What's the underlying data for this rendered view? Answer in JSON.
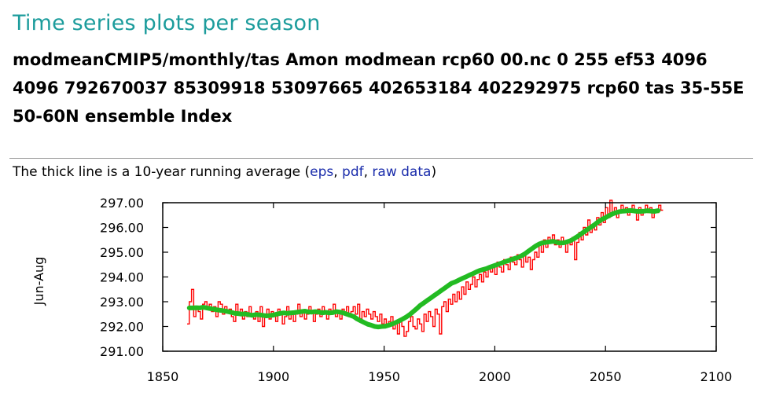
{
  "page": {
    "title": "Time series plots per season",
    "subtitle": "modmeanCMIP5/monthly/tas Amon modmean rcp60 00.nc 0 255 ef53 4096 4096 792670037 85309918 53097665 402653184 402292975 rcp60 tas 35-55E 50-60N ensemble Index"
  },
  "caption": {
    "text_before": "The thick line is a 10-year running average (",
    "link_eps": "eps",
    "sep1": ", ",
    "link_pdf": "pdf",
    "sep2": ", ",
    "link_raw": "raw data",
    "text_after": ")"
  },
  "colors": {
    "title": "#1c9c9c",
    "link": "#1a2cab",
    "raw_series": "#ff0000",
    "running_mean": "#22bb22"
  },
  "chart_data": {
    "type": "line",
    "title": "",
    "xlabel": "",
    "ylabel": "Jun-Aug",
    "xlim": [
      1850,
      2100
    ],
    "ylim": [
      291.0,
      297.0
    ],
    "x_ticks": [
      1850,
      1900,
      1950,
      2000,
      2050,
      2100
    ],
    "y_ticks": [
      291.0,
      292.0,
      293.0,
      294.0,
      295.0,
      296.0,
      297.0
    ],
    "y_tick_labels": [
      "291.00",
      "292.00",
      "293.00",
      "294.00",
      "295.00",
      "296.00",
      "297.00"
    ],
    "x_start": 1861,
    "grid": false,
    "legend": "none",
    "series": [
      {
        "style": "stepped",
        "values": [
          292.1,
          293.0,
          293.5,
          292.4,
          292.8,
          292.6,
          292.3,
          292.9,
          293.0,
          292.7,
          292.9,
          292.6,
          292.8,
          292.4,
          293.0,
          292.9,
          292.5,
          292.8,
          292.6,
          292.7,
          292.4,
          292.2,
          292.9,
          292.5,
          292.7,
          292.3,
          292.6,
          292.4,
          292.8,
          292.5,
          292.3,
          292.6,
          292.2,
          292.8,
          292.0,
          292.5,
          292.7,
          292.3,
          292.6,
          292.4,
          292.2,
          292.7,
          292.5,
          292.1,
          292.4,
          292.8,
          292.3,
          292.6,
          292.2,
          292.5,
          292.9,
          292.4,
          292.6,
          292.3,
          292.5,
          292.8,
          292.6,
          292.2,
          292.5,
          292.7,
          292.4,
          292.8,
          292.5,
          292.3,
          292.7,
          292.6,
          292.9,
          292.4,
          292.6,
          292.3,
          292.7,
          292.5,
          292.8,
          292.4,
          292.6,
          292.8,
          292.5,
          292.9,
          292.3,
          292.6,
          292.4,
          292.7,
          292.5,
          292.3,
          292.6,
          292.4,
          292.2,
          292.5,
          292.1,
          292.3,
          292.0,
          292.2,
          292.4,
          291.9,
          292.1,
          291.7,
          292.2,
          292.0,
          291.6,
          291.8,
          292.2,
          292.4,
          292.0,
          291.9,
          292.3,
          292.1,
          291.8,
          292.5,
          292.2,
          292.6,
          292.4,
          292.0,
          292.7,
          292.5,
          291.7,
          292.8,
          293.0,
          292.6,
          293.1,
          292.9,
          293.3,
          293.0,
          293.4,
          293.1,
          293.6,
          293.3,
          293.8,
          293.5,
          293.7,
          294.0,
          293.6,
          293.9,
          294.1,
          293.8,
          294.2,
          294.0,
          294.3,
          294.2,
          294.5,
          294.1,
          294.6,
          294.4,
          294.2,
          294.7,
          294.5,
          294.3,
          294.8,
          294.6,
          294.5,
          294.9,
          294.7,
          294.4,
          294.9,
          294.6,
          294.8,
          294.3,
          294.7,
          295.0,
          294.8,
          295.3,
          295.0,
          295.5,
          295.2,
          295.6,
          295.4,
          295.7,
          295.3,
          295.5,
          295.2,
          295.6,
          295.4,
          295.0,
          295.5,
          295.3,
          295.6,
          294.7,
          295.4,
          295.8,
          295.5,
          296.0,
          295.7,
          296.3,
          295.8,
          296.1,
          295.9,
          296.4,
          296.1,
          296.6,
          296.2,
          296.8,
          296.4,
          297.1,
          296.5,
          296.8,
          296.4,
          296.7,
          296.9,
          296.6,
          296.8,
          296.5,
          296.7,
          296.9,
          296.6,
          296.3,
          296.8,
          296.5,
          296.7,
          296.9,
          296.6,
          296.8,
          296.4,
          296.7,
          296.6,
          296.9,
          296.7
        ]
      },
      {
        "style": "thick",
        "values": [
          292.75,
          292.75,
          292.76,
          292.75,
          292.78,
          292.75,
          292.72,
          292.7,
          292.67,
          292.65,
          292.63,
          292.6,
          292.57,
          292.53,
          292.52,
          292.5,
          292.51,
          292.48,
          292.45,
          292.48,
          292.47,
          292.45,
          292.43,
          292.44,
          292.46,
          292.5,
          292.53,
          292.55,
          292.53,
          292.55,
          292.56,
          292.58,
          292.6,
          292.62,
          292.59,
          292.58,
          292.6,
          292.58,
          292.55,
          292.57,
          292.55,
          292.56,
          292.6,
          292.58,
          292.55,
          292.5,
          292.45,
          292.4,
          292.3,
          292.23,
          292.16,
          292.09,
          292.05,
          292.0,
          291.98,
          292.0,
          292.01,
          292.05,
          292.1,
          292.16,
          292.23,
          292.3,
          292.38,
          292.48,
          292.6,
          292.72,
          292.85,
          292.95,
          293.05,
          293.15,
          293.25,
          293.35,
          293.45,
          293.55,
          293.65,
          293.75,
          293.8,
          293.87,
          293.94,
          294.0,
          294.07,
          294.13,
          294.2,
          294.26,
          294.3,
          294.34,
          294.4,
          294.45,
          294.5,
          294.55,
          294.6,
          294.65,
          294.7,
          294.75,
          294.79,
          294.86,
          294.94,
          295.05,
          295.15,
          295.25,
          295.33,
          295.38,
          295.4,
          295.42,
          295.44,
          295.4,
          295.37,
          295.38,
          295.42,
          295.47,
          295.55,
          295.64,
          295.74,
          295.84,
          295.94,
          296.03,
          296.13,
          296.24,
          296.33,
          296.4,
          296.48,
          296.55,
          296.6,
          296.64,
          296.66,
          296.67,
          296.69,
          296.67,
          296.65,
          296.65,
          296.66,
          296.68,
          296.66,
          296.65,
          296.68
        ]
      }
    ]
  }
}
